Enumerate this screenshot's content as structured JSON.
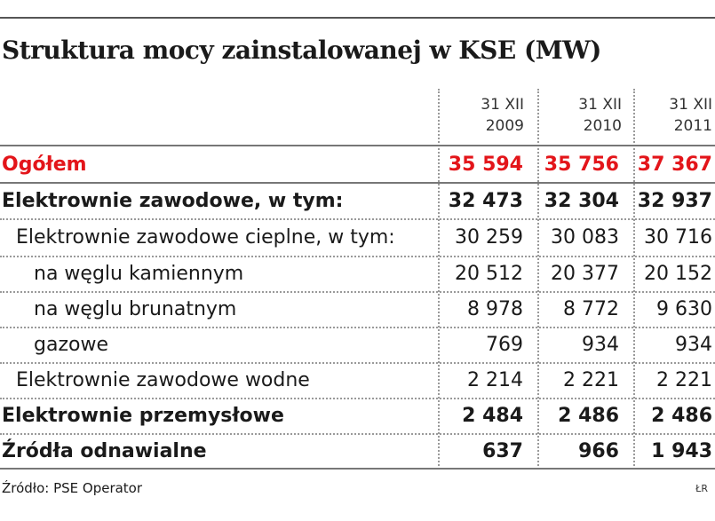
{
  "title": "Struktura mocy zainstalowanej w KSE (MW)",
  "columns": [
    {
      "top": "31 XII",
      "bottom": "2009"
    },
    {
      "top": "31 XII",
      "bottom": "2010"
    },
    {
      "top": "31 XII",
      "bottom": "2011"
    }
  ],
  "rows": [
    {
      "label": "Ogółem",
      "values": [
        "35 594",
        "35 756",
        "37 367"
      ]
    },
    {
      "label": "Elektrownie zawodowe, w tym:",
      "values": [
        "32 473",
        "32 304",
        "32 937"
      ]
    },
    {
      "label": "Elektrownie zawodowe cieplne, w tym:",
      "values": [
        "30 259",
        "30 083",
        "30 716"
      ]
    },
    {
      "label": "na węglu kamiennym",
      "values": [
        "20 512",
        "20 377",
        "20 152"
      ]
    },
    {
      "label": "na węglu brunatnym",
      "values": [
        "8 978",
        "8 772",
        "9 630"
      ]
    },
    {
      "label": "gazowe",
      "values": [
        "769",
        "934",
        "934"
      ]
    },
    {
      "label": "Elektrownie zawodowe wodne",
      "values": [
        "2 214",
        "2 221",
        "2 221"
      ]
    },
    {
      "label": "Elektrownie przemysłowe",
      "values": [
        "2 484",
        "2 486",
        "2 486"
      ]
    },
    {
      "label": "Źródła odnawialne",
      "values": [
        "637",
        "966",
        "1 943"
      ]
    }
  ],
  "source": "Źródło: PSE Operator",
  "credit": "ŁR",
  "colors": {
    "highlight": "#e3151a",
    "text": "#1a1a1a",
    "rule": "#777777"
  },
  "chart_data": {
    "type": "table",
    "title": "Struktura mocy zainstalowanej w KSE (MW)",
    "categories": [
      "31 XII 2009",
      "31 XII 2010",
      "31 XII 2011"
    ],
    "series": [
      {
        "name": "Ogółem",
        "values": [
          35594,
          35756,
          37367
        ]
      },
      {
        "name": "Elektrownie zawodowe, w tym:",
        "values": [
          32473,
          32304,
          32937
        ]
      },
      {
        "name": "Elektrownie zawodowe cieplne, w tym:",
        "values": [
          30259,
          30083,
          30716
        ]
      },
      {
        "name": "na węglu kamiennym",
        "values": [
          20512,
          20377,
          20152
        ]
      },
      {
        "name": "na węglu brunatnym",
        "values": [
          8978,
          8772,
          9630
        ]
      },
      {
        "name": "gazowe",
        "values": [
          769,
          934,
          934
        ]
      },
      {
        "name": "Elektrownie zawodowe wodne",
        "values": [
          2214,
          2221,
          2221
        ]
      },
      {
        "name": "Elektrownie przemysłowe",
        "values": [
          2484,
          2486,
          2486
        ]
      },
      {
        "name": "Źródła odnawialne",
        "values": [
          637,
          966,
          1943
        ]
      }
    ]
  }
}
